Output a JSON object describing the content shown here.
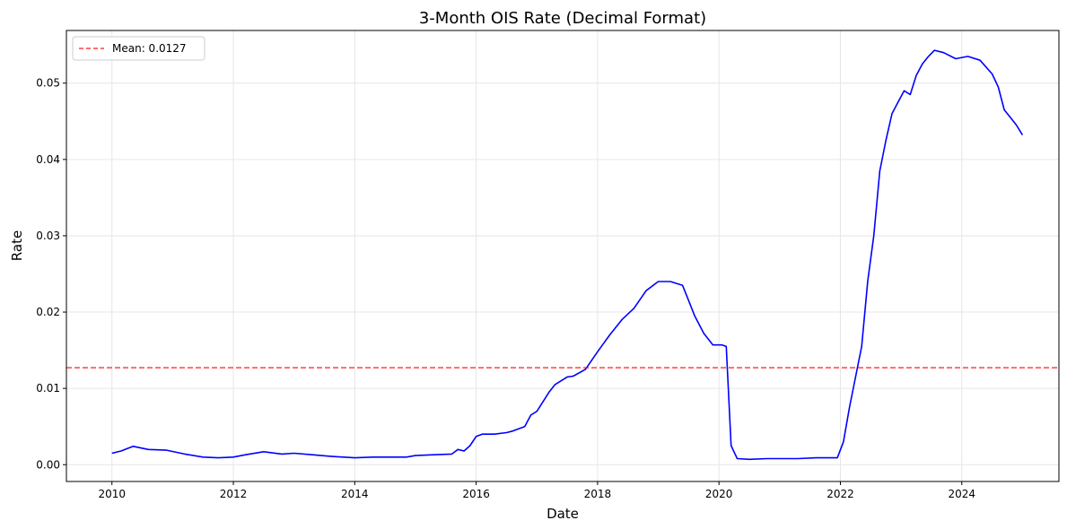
{
  "chart_data": {
    "type": "line",
    "title": "3-Month OIS Rate (Decimal Format)",
    "xlabel": "Date",
    "ylabel": "Rate",
    "xlim": [
      2009.25,
      2025.6
    ],
    "ylim": [
      -0.0022,
      0.0569
    ],
    "xticks": [
      2010,
      2012,
      2014,
      2016,
      2018,
      2020,
      2022,
      2024
    ],
    "xtick_labels": [
      "2010",
      "2012",
      "2014",
      "2016",
      "2018",
      "2020",
      "2022",
      "2024"
    ],
    "yticks": [
      0.0,
      0.01,
      0.02,
      0.03,
      0.04,
      0.05
    ],
    "ytick_labels": [
      "0.00",
      "0.01",
      "0.02",
      "0.03",
      "0.04",
      "0.05"
    ],
    "grid": true,
    "legend_position": "top-left",
    "series": [
      {
        "color": "#0000ff",
        "x": [
          2010.0,
          2010.15,
          2010.35,
          2010.6,
          2010.9,
          2011.2,
          2011.5,
          2011.75,
          2012.0,
          2012.2,
          2012.5,
          2012.8,
          2013.0,
          2013.3,
          2013.6,
          2014.0,
          2014.3,
          2014.6,
          2014.85,
          2015.0,
          2015.3,
          2015.6,
          2015.7,
          2015.8,
          2015.9,
          2016.0,
          2016.1,
          2016.3,
          2016.5,
          2016.6,
          2016.8,
          2016.9,
          2017.0,
          2017.2,
          2017.3,
          2017.5,
          2017.6,
          2017.8,
          2018.0,
          2018.2,
          2018.4,
          2018.6,
          2018.8,
          2019.0,
          2019.2,
          2019.4,
          2019.5,
          2019.6,
          2019.75,
          2019.9,
          2020.05,
          2020.12,
          2020.2,
          2020.3,
          2020.5,
          2020.8,
          2021.0,
          2021.3,
          2021.6,
          2021.8,
          2021.95,
          2022.05,
          2022.15,
          2022.25,
          2022.35,
          2022.45,
          2022.55,
          2022.65,
          2022.75,
          2022.85,
          2022.95,
          2023.05,
          2023.15,
          2023.25,
          2023.35,
          2023.45,
          2023.55,
          2023.7,
          2023.9,
          2024.1,
          2024.3,
          2024.5,
          2024.6,
          2024.7,
          2024.8,
          2024.9,
          2025.0
        ],
        "values": [
          0.0015,
          0.0018,
          0.0024,
          0.002,
          0.0019,
          0.0014,
          0.001,
          0.0009,
          0.001,
          0.0013,
          0.0017,
          0.0014,
          0.0015,
          0.0013,
          0.0011,
          0.0009,
          0.001,
          0.001,
          0.001,
          0.0012,
          0.0013,
          0.0014,
          0.002,
          0.0018,
          0.0025,
          0.0037,
          0.004,
          0.004,
          0.0042,
          0.0044,
          0.005,
          0.0065,
          0.007,
          0.0095,
          0.0105,
          0.0115,
          0.0116,
          0.0125,
          0.0148,
          0.017,
          0.019,
          0.0205,
          0.0228,
          0.024,
          0.024,
          0.0235,
          0.0215,
          0.0195,
          0.0172,
          0.0157,
          0.0157,
          0.0155,
          0.0025,
          0.0008,
          0.0007,
          0.0008,
          0.0008,
          0.0008,
          0.0009,
          0.0009,
          0.0009,
          0.003,
          0.0075,
          0.0115,
          0.0155,
          0.024,
          0.03,
          0.0385,
          0.0425,
          0.046,
          0.0475,
          0.049,
          0.0485,
          0.051,
          0.0525,
          0.0535,
          0.0543,
          0.054,
          0.0532,
          0.0535,
          0.053,
          0.0512,
          0.0495,
          0.0465,
          0.0455,
          0.0445,
          0.0432
        ]
      }
    ],
    "reference_line": {
      "value": 0.0127,
      "color": "#ff0000",
      "style": "dashed",
      "legend_label": "Mean: 0.0127"
    }
  }
}
